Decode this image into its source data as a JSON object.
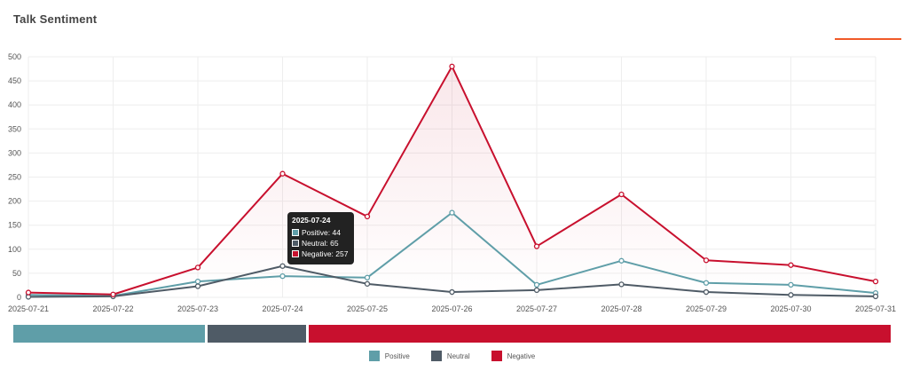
{
  "header": {
    "title": "Talk Sentiment"
  },
  "colors": {
    "positive": "#5f9ea8",
    "neutral": "#4f5b66",
    "negative": "#c8102e",
    "accent": "#f05a28"
  },
  "tooltip": {
    "date": "2025-07-24",
    "rows": [
      {
        "label": "Positive: 44",
        "series": "positive"
      },
      {
        "label": "Neutral: 65",
        "series": "neutral"
      },
      {
        "label": "Negative: 257",
        "series": "negative"
      }
    ]
  },
  "stacked_bar": [
    {
      "name": "Positive",
      "value": 522,
      "color": "#5f9ea8"
    },
    {
      "name": "Neutral",
      "value": 270,
      "color": "#4f5b66"
    },
    {
      "name": "Negative",
      "value": 1588,
      "color": "#c8102e"
    }
  ],
  "chart_data": {
    "type": "line",
    "title": "Talk Sentiment",
    "categories": [
      "2025-07-21",
      "2025-07-22",
      "2025-07-23",
      "2025-07-24",
      "2025-07-25",
      "2025-07-26",
      "2025-07-27",
      "2025-07-28",
      "2025-07-29",
      "2025-07-30",
      "2025-07-31"
    ],
    "ylim": [
      0,
      500
    ],
    "yticks": [
      0,
      50,
      100,
      150,
      200,
      250,
      300,
      350,
      400,
      450,
      500
    ],
    "grid": true,
    "legend_position": "bottom",
    "series": [
      {
        "name": "Positive",
        "key": "positive",
        "color": "#5f9ea8",
        "values": [
          5,
          3,
          33,
          44,
          41,
          176,
          26,
          76,
          30,
          26,
          9
        ]
      },
      {
        "name": "Neutral",
        "key": "neutral",
        "color": "#4f5b66",
        "values": [
          1,
          2,
          23,
          65,
          28,
          11,
          15,
          27,
          11,
          5,
          2
        ]
      },
      {
        "name": "Negative",
        "key": "negative",
        "color": "#c8102e",
        "values": [
          10,
          6,
          62,
          257,
          168,
          480,
          106,
          214,
          77,
          67,
          33
        ]
      }
    ]
  }
}
